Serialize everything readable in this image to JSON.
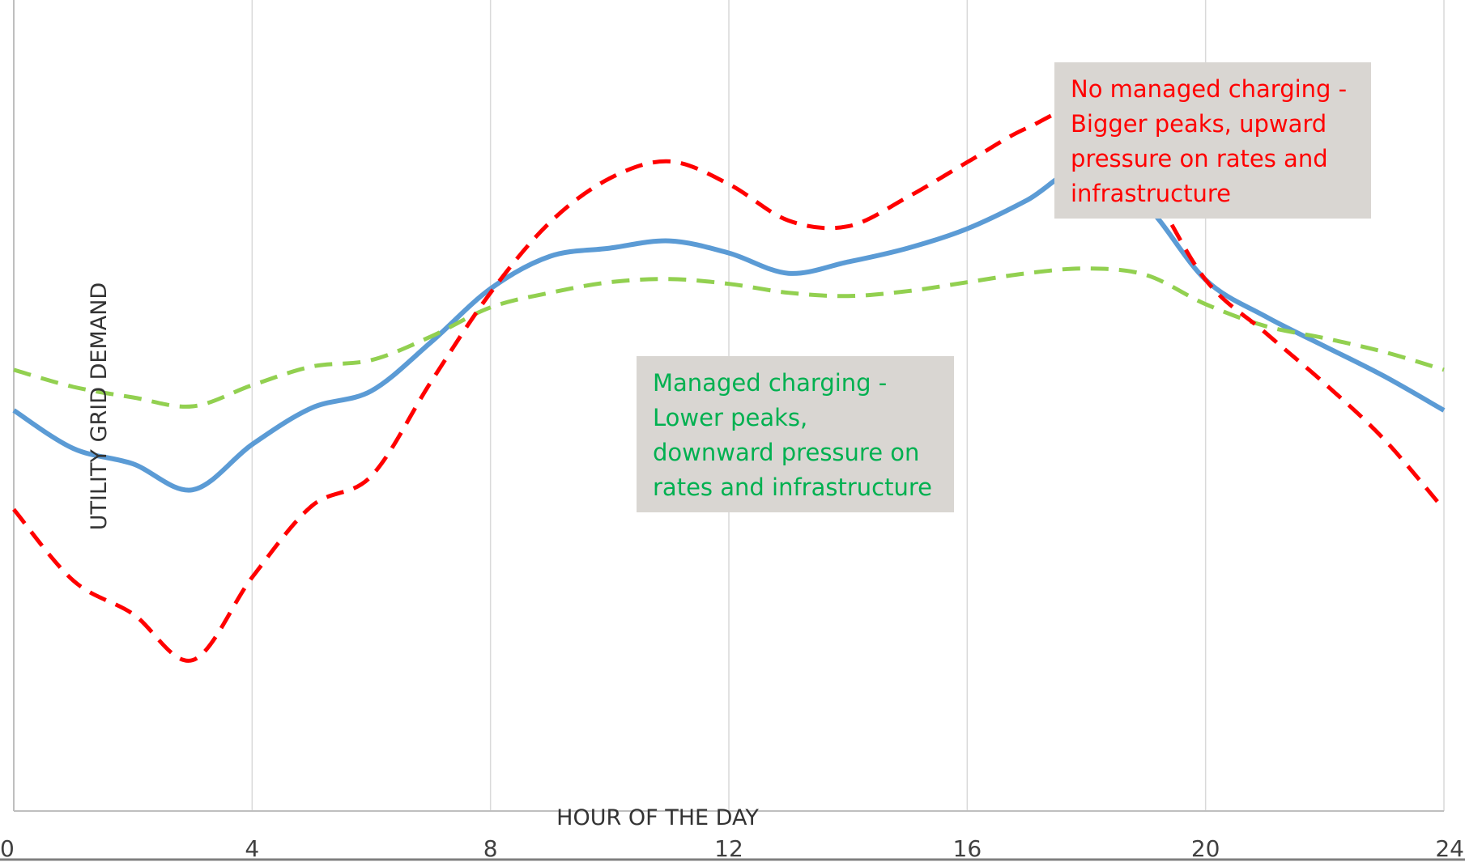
{
  "chart_data": {
    "type": "line",
    "xlabel": "HOUR OF THE DAY",
    "ylabel": "UTILITY GRID DEMAND",
    "xlim": [
      0,
      24
    ],
    "ylim": [
      0,
      100
    ],
    "xticks": [
      "0",
      "4",
      "8",
      "12",
      "16",
      "20",
      "24"
    ],
    "grid": "vertical",
    "y_tick_labels_shown": false,
    "series": [
      {
        "color": "#5b9bd5",
        "style": "solid",
        "x": [
          0,
          1,
          2,
          3,
          4,
          5,
          6,
          7,
          8,
          9,
          10,
          11,
          12,
          13,
          14,
          15,
          16,
          17,
          18,
          19,
          20,
          21,
          22,
          23,
          24
        ],
        "y": [
          49.4,
          44.7,
          42.8,
          39.6,
          45.2,
          49.7,
          51.8,
          57.8,
          64.4,
          68.4,
          69.4,
          70.3,
          68.8,
          66.3,
          67.7,
          69.4,
          71.8,
          75.3,
          79.5,
          74.7,
          65.5,
          61.0,
          57.3,
          53.6,
          49.4
        ]
      },
      {
        "color": "#92d050",
        "style": "dashed",
        "x": [
          0,
          1,
          2,
          3,
          4,
          5,
          6,
          7,
          8,
          9,
          10,
          11,
          12,
          13,
          14,
          15,
          16,
          17,
          18,
          19,
          20,
          21,
          22,
          23,
          24
        ],
        "y": [
          54.4,
          52.3,
          51.0,
          49.9,
          52.5,
          54.8,
          55.6,
          58.5,
          62.1,
          63.9,
          65.2,
          65.6,
          65.0,
          63.9,
          63.5,
          64.1,
          65.2,
          66.3,
          66.9,
          66.1,
          62.5,
          59.8,
          58.3,
          56.6,
          54.4
        ]
      },
      {
        "color": "#ff0000",
        "style": "dashed",
        "x": [
          0,
          1,
          2,
          3,
          4,
          5,
          6,
          7,
          8,
          9,
          10,
          11,
          12,
          13,
          14,
          15,
          16,
          17,
          18,
          19,
          20,
          21,
          22,
          23,
          24
        ],
        "y": [
          37.2,
          28.4,
          24.3,
          18.6,
          28.8,
          37.6,
          41.3,
          52.9,
          63.9,
          72.6,
          78.0,
          80.1,
          77.3,
          72.8,
          72.1,
          75.7,
          80.0,
          84.2,
          86.3,
          77.6,
          65.5,
          59.0,
          52.7,
          45.8,
          37.2
        ]
      }
    ],
    "annotations": [
      {
        "lines": [
          "No managed charging -",
          "Bigger peaks, upward",
          "pressure on rates and",
          "infrastructure"
        ],
        "color": "#ff0000",
        "background": "#d9d6d2"
      },
      {
        "lines": [
          "Managed charging -",
          "Lower peaks,",
          "downward pressure on",
          "rates and infrastructure"
        ],
        "color": "#00b050",
        "background": "#d9d6d2"
      }
    ]
  }
}
